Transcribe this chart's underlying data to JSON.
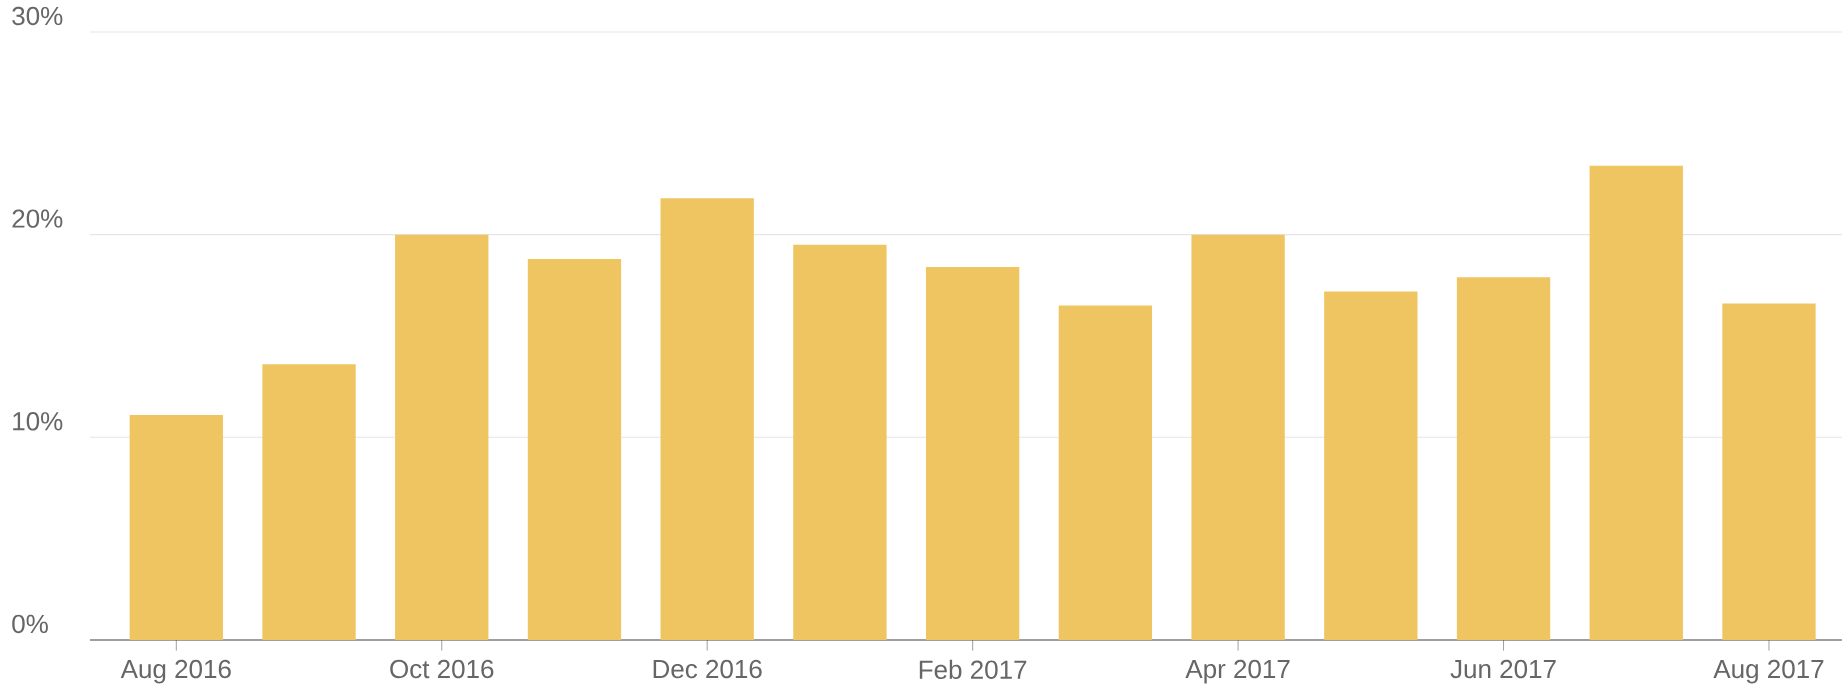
{
  "chart_data": {
    "type": "bar",
    "categories": [
      "Aug 2016",
      null,
      "Oct 2016",
      null,
      "Dec 2016",
      null,
      "Feb 2017",
      null,
      "Apr 2017",
      null,
      "Jun 2017",
      null,
      "Aug 2017"
    ],
    "values": [
      11.1,
      13.6,
      20.0,
      18.8,
      21.8,
      19.5,
      18.4,
      16.5,
      20.0,
      17.2,
      17.9,
      23.4,
      16.6
    ],
    "color": "#efc562",
    "ylim": [
      0,
      30
    ],
    "yticks": [
      {
        "value": 0,
        "label": "0%"
      },
      {
        "value": 10,
        "label": "10%"
      },
      {
        "value": 20,
        "label": "20%"
      },
      {
        "value": 30,
        "label": "30%"
      }
    ],
    "grid": "y"
  }
}
